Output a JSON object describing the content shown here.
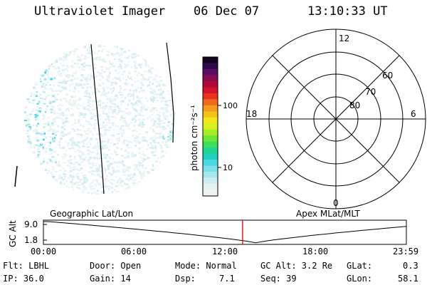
{
  "header": {
    "title": "Ultraviolet Imager",
    "date": "06 Dec 07",
    "time": "13:10:33 UT"
  },
  "colorbar": {
    "label": "photon cm⁻²s⁻¹",
    "ticks": [
      "100",
      "10"
    ],
    "colors": [
      "#f2f2f2",
      "#e4f2f2",
      "#cfeef2",
      "#a8e6ee",
      "#7ee0ea",
      "#4ad8e4",
      "#22d0c0",
      "#20d690",
      "#3ade5a",
      "#6ee636",
      "#a6ee24",
      "#d6f21c",
      "#f4e818",
      "#f6c21a",
      "#f49a1c",
      "#f06a1c",
      "#e8321e",
      "#d4102a",
      "#b00838",
      "#880a52",
      "#5c0c62",
      "#300a4e",
      "#10061e"
    ]
  },
  "polar": {
    "mlt_labels": [
      "12",
      "18",
      "6",
      "0"
    ],
    "mlat_labels": [
      "60",
      "70",
      "80"
    ]
  },
  "timeline": {
    "left_label": "Geographic Lat/Lon",
    "right_label": "Apex MLat/MLT",
    "axis_label": "GC Alt",
    "y_ticks": [
      "9.0",
      "1.8"
    ],
    "x_ticks": [
      "00:00",
      "06:00",
      "12:00",
      "18:00",
      "23:59"
    ],
    "current_time_fraction": 0.5488
  },
  "info": {
    "row1": {
      "flt": "Flt: LBHL",
      "door": "Door: Open",
      "mode": "Mode: Normal",
      "gcalt": "GC Alt: 3.2 Re",
      "glat_label": "GLat:",
      "glat_value": "0.3"
    },
    "row2": {
      "ip": "IP: 36.0",
      "gain": "Gain: 14",
      "dsp_label": "Dsp:",
      "dsp_value": "7.1",
      "seq": "Seq: 39",
      "glon_label": "GLon:",
      "glon_value": "58.1"
    }
  }
}
